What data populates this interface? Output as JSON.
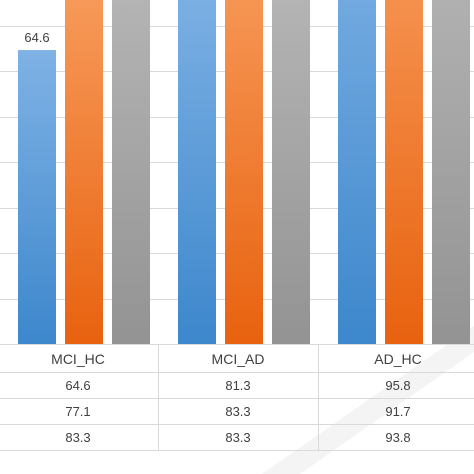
{
  "chart_data": {
    "type": "bar",
    "categories": [
      "MCI_HC",
      "MCI_AD",
      "AD_HC"
    ],
    "series": [
      {
        "values": [
          64.6,
          81.3,
          95.8
        ]
      },
      {
        "values": [
          77.1,
          83.3,
          91.7
        ]
      },
      {
        "values": [
          83.3,
          83.3,
          93.8
        ]
      }
    ],
    "title": "",
    "xlabel": "",
    "ylabel": "",
    "grid": true,
    "data_table": true,
    "colors": {
      "series": [
        [
          "#7fb2e5",
          "#3d87cc"
        ],
        [
          "#f79a5a",
          "#e8620f"
        ],
        [
          "#b7b7b7",
          "#939393"
        ]
      ],
      "gridline": "#d9d9d9",
      "text": "#404040"
    }
  }
}
